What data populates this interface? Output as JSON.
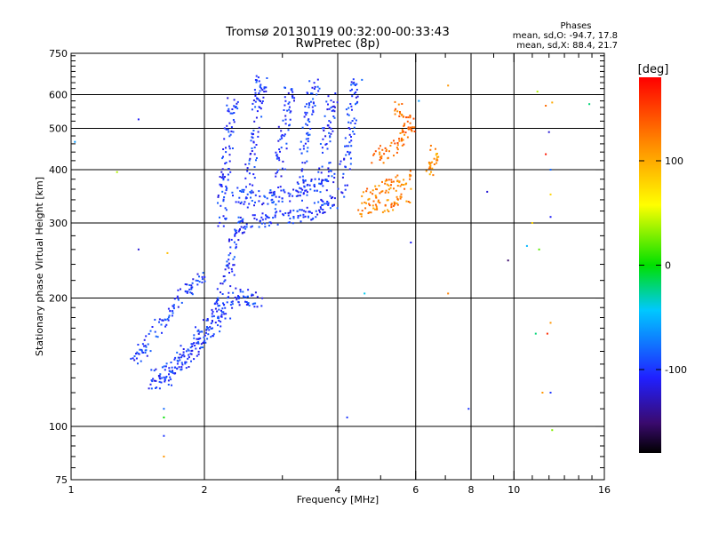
{
  "chart_data": {
    "type": "scatter",
    "title": "Tromsø 20130119 00:32:00-00:33:43",
    "subtitle": "RwPretec (8p)",
    "xlabel": "Frequency [MHz]",
    "ylabel": "Stationary phase Virtual Height [km]",
    "x_scale": "log",
    "y_scale": "log",
    "xlim": [
      1,
      16
    ],
    "ylim": [
      75,
      750
    ],
    "x_ticks": [
      1,
      2,
      4,
      6,
      8,
      10,
      16
    ],
    "y_ticks": [
      75,
      100,
      200,
      300,
      400,
      500,
      600,
      750
    ],
    "x_grid": [
      2,
      4,
      6,
      8,
      10
    ],
    "y_grid": [
      100,
      200,
      300,
      400,
      500,
      600
    ],
    "grid": true,
    "stats": {
      "header": "Phases",
      "line_o": "mean, sd,O: -94.7, 17.8",
      "line_x": "mean, sd,X:  88.4, 21.7"
    },
    "colorbar": {
      "label": "[deg]",
      "range": [
        -180,
        180
      ],
      "ticks": [
        100,
        0,
        -100
      ],
      "tick_labels": [
        "100",
        "0",
        "-100"
      ]
    },
    "trace_groups": [
      {
        "phase": -100,
        "points": [
          [
            1.55,
            130
          ],
          [
            1.65,
            135
          ],
          [
            1.75,
            142
          ],
          [
            1.85,
            152
          ],
          [
            1.95,
            165
          ],
          [
            2.05,
            178
          ],
          [
            2.15,
            192
          ],
          [
            2.22,
            210
          ],
          [
            2.28,
            235
          ],
          [
            2.32,
            260
          ],
          [
            2.38,
            290
          ],
          [
            2.45,
            300
          ],
          [
            2.6,
            305
          ],
          [
            2.8,
            307
          ],
          [
            3.0,
            308
          ],
          [
            3.2,
            310
          ],
          [
            3.4,
            315
          ],
          [
            3.6,
            322
          ],
          [
            3.8,
            330
          ],
          [
            4.0,
            336
          ]
        ]
      },
      {
        "phase": -100,
        "points": [
          [
            1.5,
            125
          ],
          [
            1.6,
            128
          ],
          [
            1.7,
            132
          ],
          [
            1.8,
            140
          ],
          [
            1.9,
            150
          ],
          [
            2.0,
            160
          ],
          [
            2.1,
            170
          ],
          [
            2.2,
            182
          ],
          [
            2.3,
            195
          ],
          [
            2.4,
            205
          ],
          [
            2.55,
            200
          ],
          [
            2.65,
            198
          ]
        ]
      },
      {
        "phase": -100,
        "points": [
          [
            1.4,
            140
          ],
          [
            1.45,
            150
          ],
          [
            1.5,
            160
          ],
          [
            1.6,
            175
          ],
          [
            1.7,
            190
          ],
          [
            1.8,
            205
          ],
          [
            1.9,
            215
          ],
          [
            2.0,
            225
          ]
        ]
      },
      {
        "phase": -100,
        "points": [
          [
            2.2,
            300
          ],
          [
            2.2,
            340
          ],
          [
            2.22,
            380
          ],
          [
            2.25,
            420
          ],
          [
            2.28,
            480
          ],
          [
            2.3,
            540
          ],
          [
            2.32,
            580
          ]
        ]
      },
      {
        "phase": -100,
        "points": [
          [
            2.5,
            330
          ],
          [
            2.55,
            400
          ],
          [
            2.6,
            460
          ],
          [
            2.62,
            520
          ],
          [
            2.65,
            580
          ],
          [
            2.68,
            620
          ],
          [
            2.7,
            640
          ]
        ]
      },
      {
        "phase": -100,
        "points": [
          [
            2.9,
            330
          ],
          [
            2.95,
            400
          ],
          [
            3.0,
            460
          ],
          [
            3.05,
            520
          ],
          [
            3.1,
            580
          ],
          [
            3.12,
            620
          ]
        ]
      },
      {
        "phase": -100,
        "points": [
          [
            3.3,
            340
          ],
          [
            3.35,
            420
          ],
          [
            3.4,
            480
          ],
          [
            3.45,
            540
          ],
          [
            3.5,
            600
          ],
          [
            3.55,
            640
          ]
        ]
      },
      {
        "phase": -100,
        "points": [
          [
            3.7,
            350
          ],
          [
            3.75,
            430
          ],
          [
            3.8,
            490
          ],
          [
            3.85,
            550
          ],
          [
            3.9,
            600
          ]
        ]
      },
      {
        "phase": -100,
        "points": [
          [
            4.1,
            350
          ],
          [
            4.15,
            420
          ],
          [
            4.2,
            470
          ],
          [
            4.28,
            530
          ],
          [
            4.35,
            600
          ],
          [
            4.45,
            650
          ]
        ]
      },
      {
        "phase": -100,
        "points": [
          [
            2.35,
            350
          ],
          [
            2.5,
            345
          ],
          [
            2.7,
            340
          ],
          [
            2.9,
            345
          ],
          [
            3.1,
            350
          ],
          [
            3.3,
            360
          ],
          [
            3.5,
            370
          ],
          [
            3.7,
            380
          ],
          [
            3.9,
            390
          ]
        ]
      },
      {
        "phase": 120,
        "points": [
          [
            4.5,
            320
          ],
          [
            4.8,
            325
          ],
          [
            5.1,
            330
          ],
          [
            5.4,
            340
          ],
          [
            5.7,
            350
          ]
        ]
      },
      {
        "phase": 120,
        "points": [
          [
            4.6,
            345
          ],
          [
            4.9,
            355
          ],
          [
            5.2,
            365
          ],
          [
            5.5,
            375
          ],
          [
            5.8,
            385
          ]
        ]
      },
      {
        "phase": 130,
        "points": [
          [
            4.8,
            420
          ],
          [
            5.1,
            440
          ],
          [
            5.4,
            460
          ],
          [
            5.7,
            480
          ],
          [
            5.9,
            500
          ],
          [
            5.7,
            530
          ],
          [
            5.4,
            560
          ]
        ]
      },
      {
        "phase": 110,
        "points": [
          [
            6.5,
            400
          ],
          [
            6.6,
            420
          ],
          [
            6.7,
            440
          ]
        ]
      }
    ],
    "sparse_points": [
      {
        "x": 1.02,
        "y": 465,
        "phase": -60
      },
      {
        "x": 1.27,
        "y": 395,
        "phase": 40
      },
      {
        "x": 1.42,
        "y": 260,
        "phase": -120
      },
      {
        "x": 1.42,
        "y": 525,
        "phase": -110
      },
      {
        "x": 1.62,
        "y": 110,
        "phase": -80
      },
      {
        "x": 1.62,
        "y": 105,
        "phase": 0
      },
      {
        "x": 1.62,
        "y": 95,
        "phase": -100
      },
      {
        "x": 1.62,
        "y": 85,
        "phase": 110
      },
      {
        "x": 1.65,
        "y": 255,
        "phase": 90
      },
      {
        "x": 4.2,
        "y": 105,
        "phase": -100
      },
      {
        "x": 4.6,
        "y": 205,
        "phase": -40
      },
      {
        "x": 5.85,
        "y": 270,
        "phase": -110
      },
      {
        "x": 6.1,
        "y": 580,
        "phase": -60
      },
      {
        "x": 7.1,
        "y": 630,
        "phase": 110
      },
      {
        "x": 7.1,
        "y": 205,
        "phase": 120
      },
      {
        "x": 7.9,
        "y": 110,
        "phase": -100
      },
      {
        "x": 8.7,
        "y": 355,
        "phase": -120
      },
      {
        "x": 9.7,
        "y": 245,
        "phase": -150
      },
      {
        "x": 10.7,
        "y": 265,
        "phase": -50
      },
      {
        "x": 11.0,
        "y": 300,
        "phase": 80
      },
      {
        "x": 11.2,
        "y": 165,
        "phase": -20
      },
      {
        "x": 11.3,
        "y": 610,
        "phase": 40
      },
      {
        "x": 11.4,
        "y": 260,
        "phase": 20
      },
      {
        "x": 11.6,
        "y": 120,
        "phase": 110
      },
      {
        "x": 11.8,
        "y": 565,
        "phase": 130
      },
      {
        "x": 11.8,
        "y": 435,
        "phase": 170
      },
      {
        "x": 11.9,
        "y": 165,
        "phase": 160
      },
      {
        "x": 12.0,
        "y": 490,
        "phase": -120
      },
      {
        "x": 12.1,
        "y": 400,
        "phase": -80
      },
      {
        "x": 12.1,
        "y": 350,
        "phase": 80
      },
      {
        "x": 12.1,
        "y": 310,
        "phase": -110
      },
      {
        "x": 12.1,
        "y": 175,
        "phase": 110
      },
      {
        "x": 12.1,
        "y": 120,
        "phase": -100
      },
      {
        "x": 12.2,
        "y": 98,
        "phase": 30
      },
      {
        "x": 12.2,
        "y": 575,
        "phase": 100
      },
      {
        "x": 14.8,
        "y": 570,
        "phase": -20
      }
    ]
  }
}
